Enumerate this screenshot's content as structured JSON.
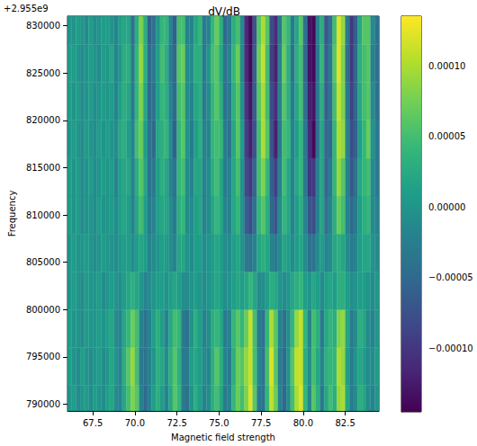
{
  "chart_data": {
    "type": "heatmap",
    "title": "dV/dB",
    "xlabel": "Magnetic field strength",
    "ylabel": "Frequency",
    "y_offset_text": "+2.955e9",
    "color": "viridis",
    "xlim": [
      66,
      84.5
    ],
    "xticks": [
      67.5,
      {
        "value": 70,
        "label": "70.0"
      },
      72.5,
      {
        "value": 75,
        "label": "75.0"
      },
      77.5,
      {
        "value": 80,
        "label": "80.0"
      },
      82.5
    ],
    "ylim": [
      2955789300,
      2955831000
    ],
    "yticks": [
      {
        "value": 2955790000,
        "label": "790000"
      },
      {
        "value": 2955795000,
        "label": "795000"
      },
      {
        "value": 2955800000,
        "label": "800000"
      },
      {
        "value": 2955805000,
        "label": "805000"
      },
      {
        "value": 2955810000,
        "label": "810000"
      },
      {
        "value": 2955815000,
        "label": "815000"
      },
      {
        "value": 2955820000,
        "label": "820000"
      },
      {
        "value": 2955825000,
        "label": "825000"
      },
      {
        "value": 2955830000,
        "label": "830000"
      }
    ],
    "colorbar": {
      "range": [
        -0.000145,
        0.000135
      ],
      "ticks": [
        {
          "value": -0.0001,
          "label": "−0.00010"
        },
        {
          "value": -5e-05,
          "label": "−0.00005"
        },
        {
          "value": 0,
          "label": "0.00000"
        },
        {
          "value": 5e-05,
          "label": "0.00005"
        },
        {
          "value": 0.0001,
          "label": "0.00010"
        }
      ]
    },
    "x": [
      66.125,
      66.375,
      66.625,
      66.875,
      67.125,
      67.375,
      67.625,
      67.875,
      68.125,
      68.375,
      68.625,
      68.875,
      69.125,
      69.375,
      69.625,
      69.875,
      70.125,
      70.375,
      70.625,
      70.875,
      71.125,
      71.375,
      71.625,
      71.875,
      72.125,
      72.375,
      72.625,
      72.875,
      73.125,
      73.375,
      73.625,
      73.875,
      74.125,
      74.375,
      74.625,
      74.875,
      75.125,
      75.375,
      75.625,
      75.875,
      76.125,
      76.375,
      76.625,
      76.875,
      77.125,
      77.375,
      77.625,
      77.875,
      78.125,
      78.375,
      78.625,
      78.875,
      79.125,
      79.375,
      79.625,
      79.875,
      80.125,
      80.375,
      80.625,
      80.875,
      81.125,
      81.375,
      81.625,
      81.875,
      82.125,
      82.375,
      82.625,
      82.875,
      83.125,
      83.375,
      83.625,
      83.875,
      84.125,
      84.375
    ],
    "y": [
      2955790000,
      2955794000,
      2955798000,
      2955802000,
      2955806000,
      2955810000,
      2955814000,
      2955818000,
      2955822000,
      2955826000,
      2955830000
    ],
    "cells": [
      [
        0,
        1e-05,
        -1e-05,
        0,
        1e-05,
        -1e-05,
        1e-05,
        0,
        -1e-05,
        1e-05,
        2e-05,
        -1e-05,
        -2e-05,
        2e-05,
        5e-05,
        8e-05,
        6e-05,
        -2e-05,
        -5e-05,
        -2e-05,
        1e-05,
        3e-05,
        1e-05,
        -2e-05,
        2e-05,
        6e-05,
        4e-05,
        -3e-05,
        -4e-05,
        0,
        3e-05,
        1e-05,
        -2e-05,
        -1e-05,
        3e-05,
        5e-05,
        2e-05,
        -3e-05,
        -2e-05,
        4e-05,
        7e-05,
        5e-05,
        8e-05,
        0.00012,
        6e-05,
        -3e-05,
        -4e-05,
        4e-05,
        0.00011,
        7e-05,
        -2e-05,
        -5e-05,
        -1e-05,
        5e-05,
        0.0001,
        0.00012,
        4e-05,
        -2e-05,
        6e-05,
        3e-05,
        -3e-05,
        2e-05,
        5e-05,
        3e-05,
        9e-05,
        0.0001,
        2e-05,
        -3e-05,
        -1e-05,
        3e-05,
        2e-05,
        -1e-05,
        -2e-05,
        0
      ],
      [
        1e-05,
        0,
        -1e-05,
        1e-05,
        0,
        -1e-05,
        0,
        1e-05,
        -1e-05,
        0,
        2e-05,
        0,
        -2e-05,
        3e-05,
        6e-05,
        9e-05,
        5e-05,
        -3e-05,
        -4e-05,
        -2e-05,
        0,
        3e-05,
        2e-05,
        -1e-05,
        3e-05,
        6e-05,
        3e-05,
        -3e-05,
        -3e-05,
        1e-05,
        2e-05,
        1e-05,
        -1e-05,
        -2e-05,
        3e-05,
        6e-05,
        3e-05,
        -2e-05,
        -3e-05,
        3e-05,
        7e-05,
        6e-05,
        9e-05,
        0.00011,
        5e-05,
        -2e-05,
        -4e-05,
        5e-05,
        0.00012,
        6e-05,
        -3e-05,
        -5e-05,
        0,
        6e-05,
        0.00011,
        0.00011,
        3e-05,
        -1e-05,
        5e-05,
        2e-05,
        -2e-05,
        3e-05,
        4e-05,
        4e-05,
        0.0001,
        9e-05,
        1e-05,
        -3e-05,
        0,
        2e-05,
        1e-05,
        -1e-05,
        -1e-05,
        1e-05
      ],
      [
        1e-05,
        0,
        0,
        -1e-05,
        1e-05,
        0,
        0,
        1e-05,
        0,
        1e-05,
        2e-05,
        -1e-05,
        -2e-05,
        2e-05,
        4e-05,
        7e-05,
        5e-05,
        -2e-05,
        -4e-05,
        -2e-05,
        1e-05,
        3e-05,
        1e-05,
        -2e-05,
        2e-05,
        5e-05,
        4e-05,
        -3e-05,
        -4e-05,
        0,
        3e-05,
        1e-05,
        -2e-05,
        -1e-05,
        3e-05,
        4e-05,
        2e-05,
        -3e-05,
        -2e-05,
        4e-05,
        6e-05,
        4e-05,
        7e-05,
        0.00011,
        5e-05,
        -3e-05,
        -4e-05,
        4e-05,
        0.0001,
        6e-05,
        -2e-05,
        -4e-05,
        -1e-05,
        4e-05,
        9e-05,
        0.00011,
        4e-05,
        -2e-05,
        5e-05,
        3e-05,
        -3e-05,
        2e-05,
        4e-05,
        3e-05,
        8e-05,
        9e-05,
        2e-05,
        -3e-05,
        -1e-05,
        3e-05,
        2e-05,
        -1e-05,
        -2e-05,
        0
      ],
      [
        0,
        1e-05,
        0,
        -1e-05,
        1e-05,
        0,
        0,
        1e-05,
        -1e-05,
        0,
        1e-05,
        0,
        -1e-05,
        1e-05,
        2e-05,
        3e-05,
        2e-05,
        0,
        -2e-05,
        -1e-05,
        0,
        1e-05,
        1e-05,
        0,
        1e-05,
        2e-05,
        1e-05,
        -1e-05,
        -1e-05,
        0,
        1e-05,
        0,
        -1e-05,
        0,
        1e-05,
        2e-05,
        1e-05,
        -1e-05,
        0,
        1e-05,
        2e-05,
        1e-05,
        2e-05,
        4e-05,
        2e-05,
        -1e-05,
        -1e-05,
        1e-05,
        3e-05,
        2e-05,
        0,
        -1e-05,
        0,
        2e-05,
        3e-05,
        4e-05,
        1e-05,
        0,
        2e-05,
        1e-05,
        -1e-05,
        1e-05,
        2e-05,
        1e-05,
        3e-05,
        3e-05,
        1e-05,
        -1e-05,
        0,
        1e-05,
        1e-05,
        0,
        -1e-05,
        0
      ],
      [
        0,
        1e-05,
        0,
        0,
        1e-05,
        0,
        -1e-05,
        0,
        1e-05,
        0,
        0,
        -1e-05,
        0,
        1e-05,
        1e-05,
        -1e-05,
        1e-05,
        2e-05,
        1e-05,
        -2e-05,
        -1e-05,
        0,
        1e-05,
        1e-05,
        -1e-05,
        -2e-05,
        2e-05,
        2e-05,
        0,
        -1e-05,
        1e-05,
        1e-05,
        -1e-05,
        0,
        1e-05,
        2e-05,
        1e-05,
        -1e-05,
        -1e-05,
        1e-05,
        2e-05,
        0,
        -3e-05,
        -4e-05,
        -2e-05,
        2e-05,
        3e-05,
        2e-05,
        -2e-05,
        -3e-05,
        -1e-05,
        2e-05,
        1e-05,
        -1e-05,
        1e-05,
        2e-05,
        -1e-05,
        -4e-05,
        -4e-05,
        -1e-05,
        1e-05,
        -2e-05,
        -1e-05,
        2e-05,
        3e-05,
        2e-05,
        -1e-05,
        -3e-05,
        -2e-05,
        1e-05,
        2e-05,
        2e-05,
        0,
        -1e-05
      ],
      [
        1e-05,
        0,
        1e-05,
        -1e-05,
        0,
        0,
        -1e-05,
        1e-05,
        0,
        0,
        1e-05,
        -1e-05,
        1e-05,
        2e-05,
        1e-05,
        -2e-05,
        2e-05,
        5e-05,
        1e-05,
        -3e-05,
        -2e-05,
        1e-05,
        2e-05,
        2e-05,
        -1e-05,
        -3e-05,
        3e-05,
        4e-05,
        -1e-05,
        -1e-05,
        1e-05,
        2e-05,
        -2e-05,
        -1e-05,
        2e-05,
        4e-05,
        2e-05,
        -2e-05,
        -2e-05,
        2e-05,
        4e-05,
        0,
        -6e-05,
        -8e-05,
        -4e-05,
        4e-05,
        6e-05,
        3e-05,
        -5e-05,
        -7e-05,
        -1e-05,
        4e-05,
        2e-05,
        -2e-05,
        1e-05,
        3e-05,
        -2e-05,
        -7e-05,
        -8e-05,
        -2e-05,
        2e-05,
        -4e-05,
        -2e-05,
        3e-05,
        7e-05,
        5e-05,
        -2e-05,
        -5e-05,
        -3e-05,
        1e-05,
        3e-05,
        4e-05,
        -1e-05,
        -2e-05
      ],
      [
        1e-05,
        0,
        1e-05,
        -1e-05,
        0,
        1e-05,
        -1e-05,
        0,
        1e-05,
        0,
        1e-05,
        -2e-05,
        1e-05,
        2e-05,
        2e-05,
        -2e-05,
        3e-05,
        6e-05,
        2e-05,
        -4e-05,
        -3e-05,
        1e-05,
        3e-05,
        2e-05,
        -2e-05,
        -4e-05,
        4e-05,
        5e-05,
        -1e-05,
        -2e-05,
        2e-05,
        2e-05,
        -2e-05,
        -1e-05,
        3e-05,
        5e-05,
        2e-05,
        -3e-05,
        -2e-05,
        2e-05,
        5e-05,
        0,
        -8e-05,
        -0.0001,
        -5e-05,
        5e-05,
        8e-05,
        4e-05,
        -6e-05,
        -9e-05,
        -2e-05,
        5e-05,
        2e-05,
        -2e-05,
        2e-05,
        4e-05,
        -3e-05,
        -0.0001,
        -0.0001,
        -2e-05,
        2e-05,
        -5e-05,
        -3e-05,
        4e-05,
        9e-05,
        6e-05,
        -2e-05,
        -7e-05,
        -4e-05,
        2e-05,
        4e-05,
        5e-05,
        -1e-05,
        -3e-05
      ],
      [
        0,
        1e-05,
        0,
        -1e-05,
        1e-05,
        0,
        -1e-05,
        1e-05,
        0,
        1e-05,
        0,
        -1e-05,
        2e-05,
        3e-05,
        1e-05,
        -2e-05,
        5e-05,
        7e-05,
        1e-05,
        -4e-05,
        -5e-05,
        2e-05,
        3e-05,
        4e-05,
        -1e-05,
        -6e-05,
        4e-05,
        6e-05,
        0,
        -3e-05,
        1e-05,
        3e-05,
        -2e-05,
        -2e-05,
        4e-05,
        5e-05,
        4e-05,
        -3e-05,
        -4e-05,
        2e-05,
        6e-05,
        1e-05,
        -9e-05,
        -0.00012,
        -7e-05,
        5e-05,
        0.0001,
        6e-05,
        -7e-05,
        -0.00012,
        -3e-05,
        5e-05,
        4e-05,
        -2e-05,
        1e-05,
        4e-05,
        -3e-05,
        -0.00011,
        -0.00014,
        -4e-05,
        2e-05,
        -5e-05,
        -5e-05,
        4e-05,
        0.0001,
        9e-05,
        -2e-05,
        -8e-05,
        -6e-05,
        1e-05,
        4e-05,
        7e-05,
        0,
        -3e-05
      ],
      [
        1e-05,
        0,
        1e-05,
        -1e-05,
        0,
        1e-05,
        -1e-05,
        0,
        1e-05,
        0,
        1e-05,
        -2e-05,
        1e-05,
        3e-05,
        2e-05,
        -3e-05,
        4e-05,
        8e-05,
        2e-05,
        -5e-05,
        -4e-05,
        1e-05,
        4e-05,
        3e-05,
        -2e-05,
        -5e-05,
        5e-05,
        6e-05,
        -1e-05,
        -2e-05,
        2e-05,
        3e-05,
        -3e-05,
        -1e-05,
        4e-05,
        6e-05,
        3e-05,
        -4e-05,
        -3e-05,
        3e-05,
        6e-05,
        0,
        -0.0001,
        -0.00013,
        -6e-05,
        6e-05,
        0.0001,
        5e-05,
        -8e-05,
        -0.00011,
        -2e-05,
        6e-05,
        3e-05,
        -3e-05,
        2e-05,
        5e-05,
        -4e-05,
        -0.00012,
        -0.00013,
        -3e-05,
        3e-05,
        -6e-05,
        -4e-05,
        5e-05,
        0.00011,
        8e-05,
        -3e-05,
        -9e-05,
        -5e-05,
        2e-05,
        5e-05,
        6e-05,
        -1e-05,
        -4e-05
      ],
      [
        1e-05,
        1e-05,
        0,
        -1e-05,
        0,
        1e-05,
        0,
        -1e-05,
        1e-05,
        0,
        2e-05,
        -2e-05,
        0,
        3e-05,
        3e-05,
        -3e-05,
        4e-05,
        9e-05,
        3e-05,
        -5e-05,
        -3e-05,
        1e-05,
        5e-05,
        3e-05,
        -3e-05,
        -5e-05,
        6e-05,
        7e-05,
        -1e-05,
        -1e-05,
        3e-05,
        3e-05,
        -3e-05,
        0,
        5e-05,
        6e-05,
        2e-05,
        -4e-05,
        -2e-05,
        4e-05,
        7e-05,
        -1e-05,
        -0.00011,
        -0.00014,
        -6e-05,
        7e-05,
        0.00011,
        5e-05,
        -9e-05,
        -0.00012,
        -2e-05,
        7e-05,
        3e-05,
        -4e-05,
        3e-05,
        5e-05,
        -5e-05,
        -0.00013,
        -0.00014,
        -3e-05,
        4e-05,
        -6e-05,
        -3e-05,
        6e-05,
        0.00012,
        8e-05,
        -4e-05,
        -0.0001,
        -5e-05,
        3e-05,
        5e-05,
        6e-05,
        -2e-05,
        -4e-05
      ],
      [
        0,
        0,
        1e-05,
        0,
        -1e-05,
        1e-05,
        -1e-05,
        0,
        1e-05,
        1e-05,
        0,
        -2e-05,
        1e-05,
        2e-05,
        2e-05,
        -4e-05,
        3e-05,
        8e-05,
        3e-05,
        -6e-05,
        -4e-05,
        0,
        4e-05,
        4e-05,
        -2e-05,
        -6e-05,
        5e-05,
        5e-05,
        -2e-05,
        -2e-05,
        2e-05,
        4e-05,
        -3e-05,
        -2e-05,
        4e-05,
        7e-05,
        3e-05,
        -5e-05,
        -3e-05,
        3e-05,
        5e-05,
        -1e-05,
        -0.00011,
        -0.00014,
        -7e-05,
        6e-05,
        0.0001,
        6e-05,
        -8e-05,
        -0.00011,
        -3e-05,
        6e-05,
        4e-05,
        -3e-05,
        2e-05,
        6e-05,
        -4e-05,
        -0.00013,
        -0.00014,
        -2e-05,
        3e-05,
        -7e-05,
        -4e-05,
        5e-05,
        0.00012,
        9e-05,
        -3e-05,
        -0.0001,
        -6e-05,
        2e-05,
        6e-05,
        6e-05,
        -1e-05,
        -4e-05
      ]
    ]
  }
}
